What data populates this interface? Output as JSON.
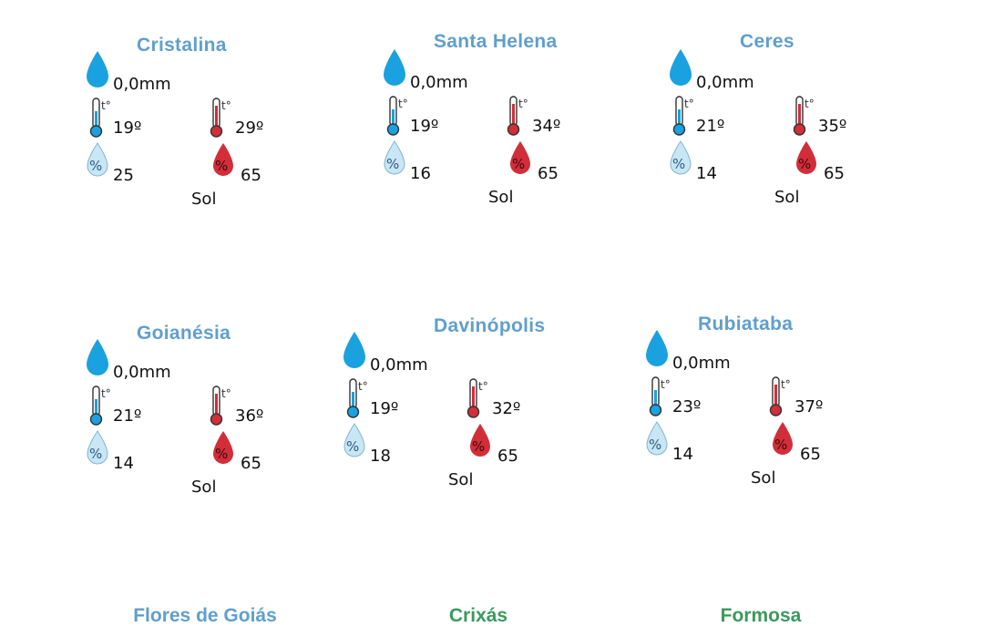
{
  "colors": {
    "title_blue": "#5f9fce",
    "title_green": "#3a9a5c",
    "drop_blue": "#1aa1df",
    "thermo_red": "#d22e3a",
    "humidity_light": "#c9e6f4",
    "text": "#111111"
  },
  "icons": {
    "rain": "water-drop-icon",
    "temp_min": "thermometer-cold-icon",
    "temp_max": "thermometer-hot-icon",
    "humidity_min": "humidity-low-icon",
    "humidity_max": "humidity-high-icon"
  },
  "cards": [
    {
      "city": "Cristalina",
      "rain": "0,0mm",
      "tmin": "19º",
      "tmax": "29º",
      "hmin": "25",
      "hmax": "65",
      "cond": "Sol"
    },
    {
      "city": "Santa Helena",
      "rain": "0,0mm",
      "tmin": "19º",
      "tmax": "34º",
      "hmin": "16",
      "hmax": "65",
      "cond": "Sol"
    },
    {
      "city": "Ceres",
      "rain": "0,0mm",
      "tmin": "21º",
      "tmax": "35º",
      "hmin": "14",
      "hmax": "65",
      "cond": "Sol"
    },
    {
      "city": "Goianésia",
      "rain": "0,0mm",
      "tmin": "21º",
      "tmax": "36º",
      "hmin": "14",
      "hmax": "65",
      "cond": "Sol"
    },
    {
      "city": "Davinópolis",
      "rain": "0,0mm",
      "tmin": "19º",
      "tmax": "32º",
      "hmin": "18",
      "hmax": "65",
      "cond": "Sol"
    },
    {
      "city": "Rubiataba",
      "rain": "0,0mm",
      "tmin": "23º",
      "tmax": "37º",
      "hmin": "14",
      "hmax": "65",
      "cond": "Sol"
    }
  ],
  "cut_off_titles": [
    "Flores de Goiás",
    "Crixás",
    "Formosa"
  ],
  "thermo_label": "t°",
  "humidity_symbol": "%"
}
